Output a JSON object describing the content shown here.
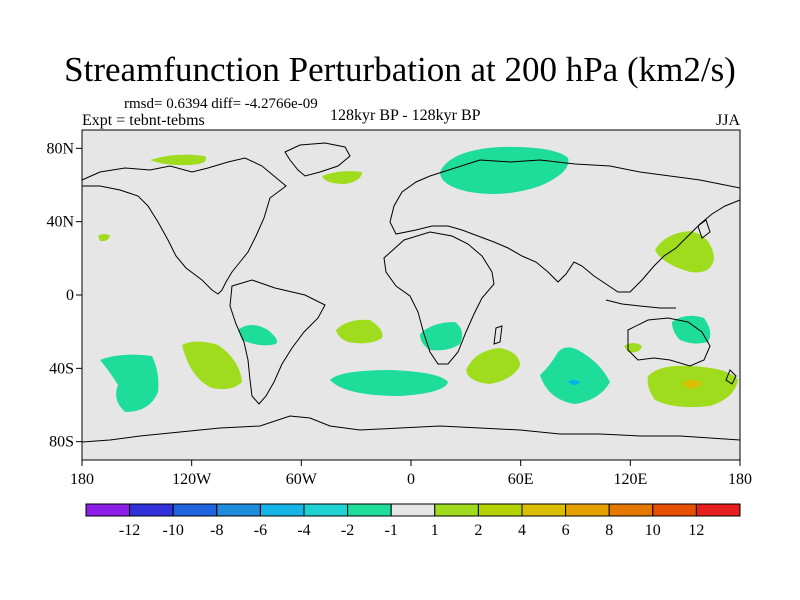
{
  "title": "Streamfunction Perturbation at 200 hPa (km2/s)",
  "stats": "rmsd= 0.6394 diff= -4.2766e-09",
  "experiment": "Expt = tebnt-tebms",
  "period": "128kyr BP - 128kyr BP",
  "season": "JJA",
  "map": {
    "lon_range": [
      -180,
      180
    ],
    "lat_range": [
      -90,
      90
    ],
    "ocean_fill": "#e6e6e6",
    "x_ticks": [
      {
        "value": -180,
        "label": "180"
      },
      {
        "value": -120,
        "label": "120W"
      },
      {
        "value": -60,
        "label": "60W"
      },
      {
        "value": 0,
        "label": "0"
      },
      {
        "value": 60,
        "label": "60E"
      },
      {
        "value": 120,
        "label": "120E"
      },
      {
        "value": 180,
        "label": "180"
      }
    ],
    "y_ticks": [
      {
        "value": 80,
        "label": "80N"
      },
      {
        "value": 40,
        "label": "40N"
      },
      {
        "value": 0,
        "label": "0"
      },
      {
        "value": -40,
        "label": "40S"
      },
      {
        "value": -80,
        "label": "80S"
      }
    ]
  },
  "anomalies": [
    {
      "name": "NorthPacific-high",
      "level": "2",
      "color": "#a0dc1e"
    },
    {
      "name": "Greenland-high",
      "level": "2",
      "color": "#a0dc1e"
    },
    {
      "name": "Eurasia-low",
      "level": "-2",
      "color": "#1edc9a"
    },
    {
      "name": "NW-Pacific-high",
      "level": "2",
      "color": "#a0dc1e"
    },
    {
      "name": "NE-Pacific-small-high",
      "level": "2",
      "color": "#a0dc1e"
    },
    {
      "name": "SE-Pacific-low",
      "level": "-2",
      "color": "#1edc9a"
    },
    {
      "name": "S-Pacific-high",
      "level": "2",
      "color": "#a0dc1e"
    },
    {
      "name": "Argentina-low",
      "level": "-2",
      "color": "#1edc9a"
    },
    {
      "name": "S-Atlantic-high",
      "level": "2",
      "color": "#a0dc1e"
    },
    {
      "name": "S-Atlantic-low",
      "level": "-2",
      "color": "#1edc9a"
    },
    {
      "name": "SE-Africa-low",
      "level": "-2",
      "color": "#1edc9a"
    },
    {
      "name": "SW-Indian-high",
      "level": "2",
      "color": "#a0dc1e"
    },
    {
      "name": "S-Indian-low",
      "level": "-2",
      "color": "#1edc9a"
    },
    {
      "name": "S-Indian-core",
      "level": "-4",
      "color": "#00b4e6"
    },
    {
      "name": "Australia-low",
      "level": "-2",
      "color": "#1edc9a"
    },
    {
      "name": "W-Australia-high",
      "level": "2",
      "color": "#a0dc1e"
    },
    {
      "name": "Tasman-high",
      "level": "2",
      "color": "#a0dc1e"
    },
    {
      "name": "Tasman-core",
      "level": "4",
      "color": "#dcbe00"
    }
  ],
  "colorbar": {
    "colors": [
      "#8c1ee6",
      "#3232dc",
      "#1e64dc",
      "#1e8cdc",
      "#14b4e6",
      "#1ed2d2",
      "#1edc9a",
      "#e6e6e6",
      "#a0dc1e",
      "#b4d200",
      "#dcbe00",
      "#e6a000",
      "#e67800",
      "#e65000",
      "#e61e1e"
    ],
    "labels": [
      "-12",
      "-10",
      "-8",
      "-6",
      "-4",
      "-2",
      "-1",
      "1",
      "2",
      "4",
      "6",
      "8",
      "10",
      "12"
    ]
  }
}
